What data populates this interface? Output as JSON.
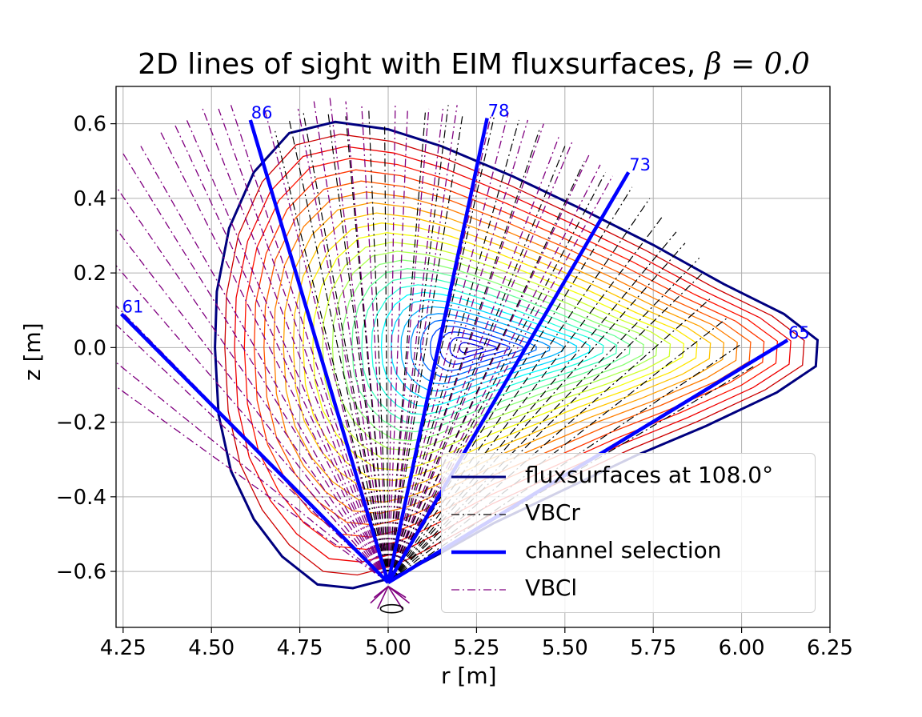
{
  "chart_data": {
    "type": "line",
    "title_text": "2D lines of sight with EIM fluxsurfaces, ",
    "title_math": "β = 0.0",
    "xlabel": "r [m]",
    "ylabel": "z [m]",
    "xlim": [
      4.23,
      6.25
    ],
    "ylim": [
      -0.75,
      0.7
    ],
    "xticks": [
      "4.25",
      "4.50",
      "4.75",
      "5.00",
      "5.25",
      "5.50",
      "5.75",
      "6.00",
      "6.25"
    ],
    "yticks": [
      "−0.6",
      "−0.4",
      "−0.2",
      "0.0",
      "0.2",
      "0.4",
      "0.6"
    ],
    "grid": true,
    "legend_position": "lower right",
    "legend": [
      {
        "label": "fluxsurfaces at 108.0°",
        "color": "#00007f",
        "style": "solid"
      },
      {
        "label": "VBCr",
        "color": "#000000",
        "style": "dashdot"
      },
      {
        "label": "channel selection",
        "color": "#0000ff",
        "style": "solid-thick"
      },
      {
        "label": "VBCl",
        "color": "#800080",
        "style": "dashdot"
      }
    ],
    "flux_surface": {
      "label": "fluxsurfaces at 108.0°",
      "axis": [
        5.23,
        0.0
      ],
      "count": 26,
      "boundary": [
        [
          5.0,
          -0.62
        ],
        [
          4.9,
          -0.645
        ],
        [
          4.8,
          -0.635
        ],
        [
          4.7,
          -0.56
        ],
        [
          4.62,
          -0.46
        ],
        [
          4.555,
          -0.33
        ],
        [
          4.52,
          -0.18
        ],
        [
          4.51,
          0.0
        ],
        [
          4.515,
          0.15
        ],
        [
          4.55,
          0.32
        ],
        [
          4.62,
          0.47
        ],
        [
          4.72,
          0.575
        ],
        [
          4.85,
          0.605
        ],
        [
          5.0,
          0.585
        ],
        [
          5.15,
          0.54
        ],
        [
          5.35,
          0.46
        ],
        [
          5.55,
          0.37
        ],
        [
          5.75,
          0.275
        ],
        [
          5.95,
          0.17
        ],
        [
          6.12,
          0.09
        ],
        [
          6.215,
          0.02
        ],
        [
          6.21,
          -0.05
        ],
        [
          6.1,
          -0.12
        ],
        [
          5.9,
          -0.21
        ],
        [
          5.7,
          -0.29
        ],
        [
          5.5,
          -0.38
        ],
        [
          5.3,
          -0.47
        ],
        [
          5.15,
          -0.55
        ],
        [
          5.05,
          -0.6
        ]
      ]
    },
    "lines_of_sight": {
      "origin": [
        5.0,
        -0.63
      ],
      "VBCl_endpoints": [
        [
          4.165,
          -0.06
        ],
        [
          4.165,
          0.01
        ],
        [
          4.165,
          0.12
        ],
        [
          4.17,
          0.17
        ],
        [
          4.18,
          0.275
        ],
        [
          4.18,
          0.38
        ],
        [
          4.195,
          0.48
        ],
        [
          4.25,
          0.52
        ],
        [
          4.3,
          0.54
        ],
        [
          4.355,
          0.58
        ],
        [
          4.395,
          0.6
        ],
        [
          4.43,
          0.61
        ],
        [
          4.475,
          0.64
        ],
        [
          4.52,
          0.64
        ],
        [
          4.555,
          0.65
        ],
        [
          4.65,
          0.64
        ],
        [
          4.745,
          0.64
        ],
        [
          4.79,
          0.66
        ],
        [
          4.835,
          0.67
        ],
        [
          4.88,
          0.66
        ],
        [
          4.925,
          0.65
        ],
        [
          5.02,
          0.65
        ],
        [
          5.055,
          0.64
        ],
        [
          5.115,
          0.64
        ],
        [
          5.155,
          0.64
        ],
        [
          5.195,
          0.65
        ],
        [
          5.29,
          0.62
        ],
        [
          5.34,
          0.63
        ],
        [
          5.395,
          0.61
        ],
        [
          5.44,
          0.6
        ],
        [
          5.485,
          0.57
        ],
        [
          5.52,
          0.55
        ],
        [
          5.57,
          0.52
        ],
        [
          5.6,
          0.49
        ],
        [
          5.635,
          0.46
        ]
      ],
      "VBCr_endpoints": [
        [
          4.68,
          0.58
        ],
        [
          4.72,
          0.61
        ],
        [
          4.76,
          0.63
        ],
        [
          4.83,
          0.63
        ],
        [
          4.88,
          0.62
        ],
        [
          4.945,
          0.64
        ],
        [
          4.99,
          0.6
        ],
        [
          5.105,
          0.63
        ],
        [
          5.17,
          0.65
        ],
        [
          5.21,
          0.62
        ],
        [
          5.3,
          0.62
        ],
        [
          5.37,
          0.61
        ],
        [
          5.43,
          0.59
        ],
        [
          5.5,
          0.54
        ],
        [
          5.555,
          0.5
        ],
        [
          5.615,
          0.47
        ],
        [
          5.69,
          0.43
        ],
        [
          5.74,
          0.4
        ],
        [
          5.775,
          0.35
        ],
        [
          5.815,
          0.31
        ],
        [
          5.84,
          0.28
        ],
        [
          5.88,
          0.24
        ],
        [
          5.89,
          0.2
        ],
        [
          5.91,
          0.13
        ],
        [
          5.96,
          0.08
        ],
        [
          6.0,
          0.01
        ],
        [
          6.035,
          -0.05
        ]
      ],
      "channel_selection": [
        {
          "label": "86",
          "end": [
            4.61,
            0.61
          ]
        },
        {
          "label": "78",
          "end": [
            5.28,
            0.615
          ]
        },
        {
          "label": "73",
          "end": [
            5.68,
            0.47
          ]
        },
        {
          "label": "61",
          "end": [
            4.245,
            0.09
          ]
        },
        {
          "label": "65",
          "end": [
            6.13,
            0.02
          ]
        }
      ]
    }
  }
}
